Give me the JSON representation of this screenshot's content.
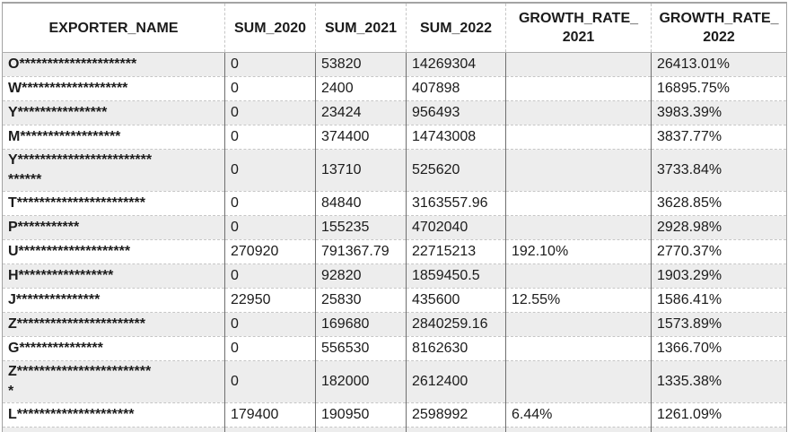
{
  "table": {
    "headers": [
      "EXPORTER_NAME",
      "SUM_2020",
      "SUM_2021",
      "SUM_2022",
      "GROWTH_RATE_\n2021",
      "GROWTH_RATE_\n2022"
    ],
    "rows": [
      {
        "cells": [
          "O*********************",
          "0",
          "53820",
          "14269304",
          "",
          "26413.01%"
        ]
      },
      {
        "cells": [
          "W*******************",
          "0",
          "2400",
          "407898",
          "",
          "16895.75%"
        ]
      },
      {
        "cells": [
          "Y****************",
          "0",
          "23424",
          "956493",
          "",
          "3983.39%"
        ]
      },
      {
        "cells": [
          "M******************",
          "0",
          "374400",
          "14743008",
          "",
          "3837.77%"
        ]
      },
      {
        "cells": [
          "Y************************\n******",
          "0",
          "13710",
          "525620",
          "",
          "3733.84%"
        ]
      },
      {
        "cells": [
          "T***********************",
          "0",
          "84840",
          "3163557.96",
          "",
          "3628.85%"
        ]
      },
      {
        "cells": [
          "P***********",
          "0",
          "155235",
          "4702040",
          "",
          "2928.98%"
        ]
      },
      {
        "cells": [
          "U********************",
          "270920",
          "791367.79",
          "22715213",
          "192.10%",
          "2770.37%"
        ]
      },
      {
        "cells": [
          "H*****************",
          "0",
          "92820",
          "1859450.5",
          "",
          "1903.29%"
        ]
      },
      {
        "cells": [
          "J***************",
          "22950",
          "25830",
          "435600",
          "12.55%",
          "1586.41%"
        ]
      },
      {
        "cells": [
          "Z***********************",
          "0",
          "169680",
          "2840259.16",
          "",
          "1573.89%"
        ]
      },
      {
        "cells": [
          "G***************",
          "0",
          "556530",
          "8162630",
          "",
          "1366.70%"
        ]
      },
      {
        "cells": [
          "Z************************\n*",
          "0",
          "182000",
          "2612400",
          "",
          "1335.38%"
        ]
      },
      {
        "cells": [
          "L*********************",
          "179400",
          "190950",
          "2598992",
          "6.44%",
          "1261.09%"
        ]
      }
    ]
  },
  "colors": {
    "row_alt_bg": "#ededed",
    "grid_vertical": "#6f6f6f",
    "grid_horizontal_dashed": "#c6c6c6",
    "header_underline": "#aeaeae",
    "outer_border": "#a3a3a3",
    "text": "#1b1b1b"
  }
}
